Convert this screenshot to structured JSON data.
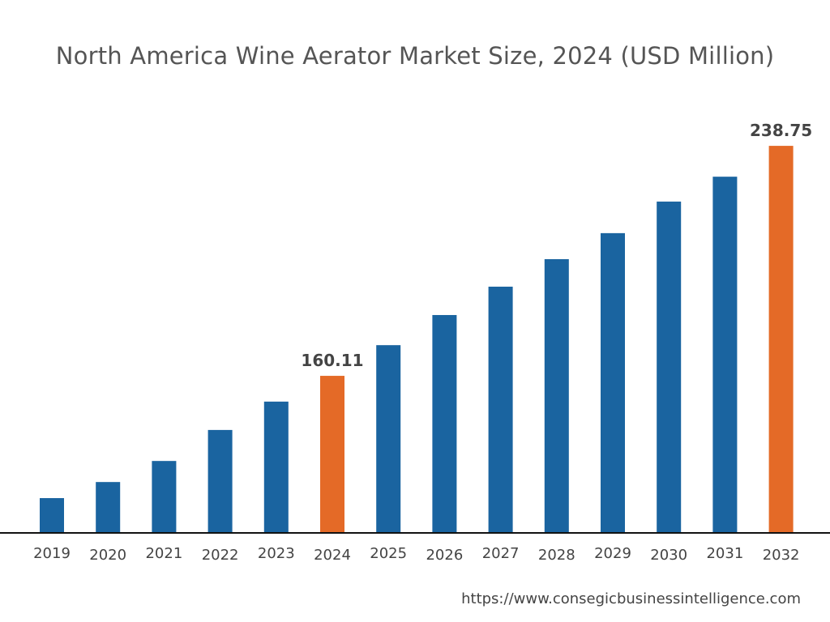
{
  "chart_data": {
    "type": "bar",
    "title": "North America Wine Aerator Market Size, 2024 (USD Million)",
    "xlabel": "",
    "ylabel": "",
    "categories": [
      "2019",
      "2020",
      "2021",
      "2022",
      "2023",
      "2024",
      "2025",
      "2026",
      "2027",
      "2028",
      "2029",
      "2030",
      "2031",
      "2032"
    ],
    "values": [
      118.3,
      123.8,
      131.0,
      141.6,
      151.3,
      160.11,
      170.6,
      180.9,
      190.6,
      200.0,
      208.9,
      219.7,
      228.2,
      238.75
    ],
    "data_labels": {
      "5": "160.11",
      "13": "238.75"
    },
    "highlight_indices": [
      5,
      13
    ],
    "ylim": [
      106.4,
      250
    ],
    "grid": false,
    "colors": {
      "default": "#1a64a0",
      "highlight": "#e46a27",
      "axis": "#111111",
      "label": "#444444"
    }
  },
  "source": "https://www.consegicbusinessintelligence.com"
}
